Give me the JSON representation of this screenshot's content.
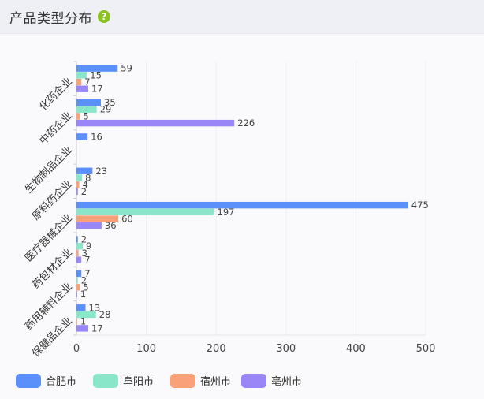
{
  "header": {
    "title": "产品类型分布",
    "help_icon": "question-circle-icon"
  },
  "chart_data": {
    "type": "bar",
    "orientation": "horizontal",
    "title": "",
    "xlabel": "",
    "ylabel": "",
    "xlim": [
      0,
      500
    ],
    "x_ticks": [
      0,
      100,
      200,
      300,
      400,
      500
    ],
    "grid": "vertical",
    "legend_position": "bottom-left",
    "categories": [
      "化药企业",
      "中药企业",
      "生物制品企业",
      "原料药企业",
      "医疗器械企业",
      "药包材企业",
      "药用辅料企业",
      "保健品企业"
    ],
    "series": [
      {
        "name": "合肥市",
        "color": "#5b8ff9",
        "values": [
          59,
          35,
          16,
          23,
          475,
          2,
          7,
          13
        ]
      },
      {
        "name": "阜阳市",
        "color": "#8ae6c9",
        "values": [
          15,
          29,
          null,
          8,
          197,
          9,
          2,
          28
        ]
      },
      {
        "name": "宿州市",
        "color": "#f9a27a",
        "values": [
          7,
          5,
          null,
          4,
          60,
          3,
          5,
          1
        ]
      },
      {
        "name": "亳州市",
        "color": "#9a86f6",
        "values": [
          17,
          226,
          null,
          2,
          36,
          7,
          1,
          17
        ]
      }
    ]
  }
}
